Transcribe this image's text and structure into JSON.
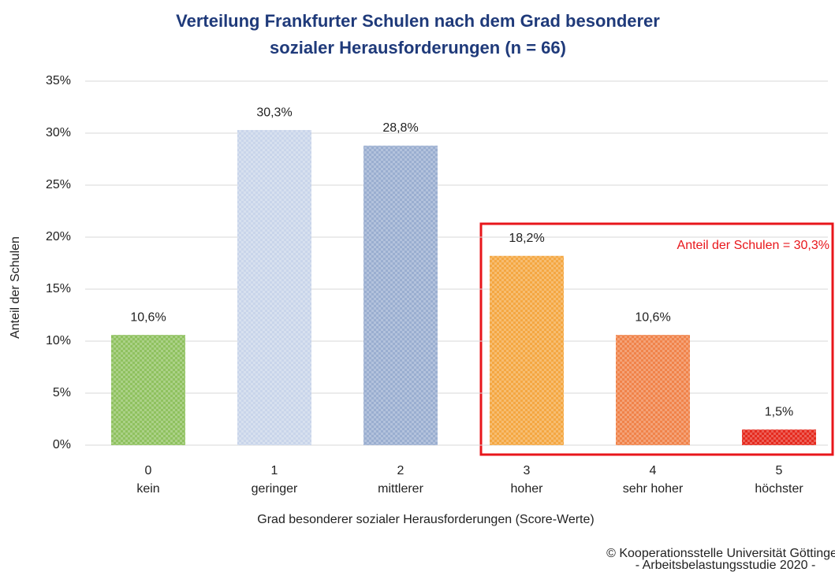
{
  "chart_data": {
    "type": "bar",
    "title": [
      "Verteilung Frankfurter Schulen nach dem Grad besonderer",
      "sozialer Herausforderungen (n = 66)"
    ],
    "x_label": "Grad besonderer sozialer Herausforderungen (Score-Werte)",
    "y_label": "Anteil der Schulen",
    "categories": [
      [
        "0",
        "kein"
      ],
      [
        "1",
        "geringer"
      ],
      [
        "2",
        "mittlerer"
      ],
      [
        "3",
        "hoher"
      ],
      [
        "4",
        "sehr hoher"
      ],
      [
        "5",
        "höchster"
      ]
    ],
    "values": [
      10.6,
      30.3,
      28.8,
      18.2,
      10.6,
      1.5
    ],
    "value_labels": [
      "10,6%",
      "30,3%",
      "28,8%",
      "18,2%",
      "10,6%",
      "1,5%"
    ],
    "colors": [
      "#8fc15f",
      "#c9d5ea",
      "#9aaed0",
      "#f4a742",
      "#f0834a",
      "#e52a1e"
    ],
    "ylim": [
      0,
      35
    ],
    "yticks": [
      {
        "value": 0,
        "label": "0%"
      },
      {
        "value": 5,
        "label": "5%"
      },
      {
        "value": 10,
        "label": "10%"
      },
      {
        "value": 15,
        "label": "15%"
      },
      {
        "value": 20,
        "label": "20%"
      },
      {
        "value": 25,
        "label": "25%"
      },
      {
        "value": 30,
        "label": "30%"
      },
      {
        "value": 35,
        "label": "35%"
      }
    ],
    "grid": true,
    "annotation": "Anteil der Schulen = 30,3%",
    "footer": [
      "© Kooperationsstelle Universität Göttingen",
      "- Arbeitsbelastungsstudie 2020 -"
    ]
  }
}
